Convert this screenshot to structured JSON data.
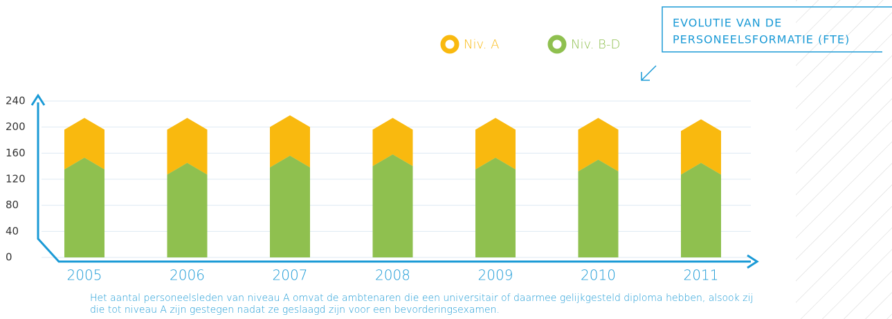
{
  "chart_data": {
    "type": "bar",
    "stacked": true,
    "title_lines": [
      "EVOLUTIE VAN DE",
      "PERSONEELSFORMATIE (FTE)"
    ],
    "caption": "Het aantal personeelsleden van niveau A omvat de ambtenaren die een universitair of daarmee gelijkgesteld diploma hebben, alsook zij die tot niveau A zijn gestegen nadat ze geslaagd zijn voor een bevorderingsexamen.",
    "categories": [
      "2005",
      "2006",
      "2007",
      "2008",
      "2009",
      "2010",
      "2011"
    ],
    "series": [
      {
        "name": "Niv. B-D",
        "color": "#8fc04f",
        "values": [
          135,
          127,
          138,
          140,
          135,
          132,
          127
        ]
      },
      {
        "name": "Niv. A",
        "color": "#f9b90f",
        "values": [
          61,
          69,
          62,
          56,
          61,
          64,
          67
        ]
      }
    ],
    "ylim": [
      0,
      240
    ],
    "yticks": [
      0,
      40,
      80,
      120,
      160,
      200,
      240
    ],
    "grid": true
  }
}
